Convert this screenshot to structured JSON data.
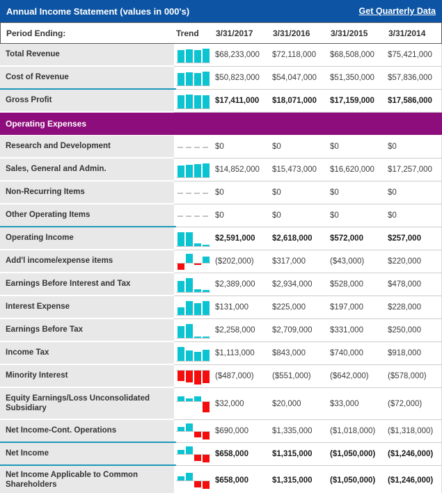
{
  "header": {
    "title": "Annual Income Statement (values in 000's)",
    "link_label": "Get Quarterly Data"
  },
  "columns": {
    "label": "Period Ending:",
    "trend_label": "Trend",
    "periods": [
      "3/31/2017",
      "3/31/2016",
      "3/31/2015",
      "3/31/2014"
    ]
  },
  "colors": {
    "header_blue": "#0d55a4",
    "section_purple": "#8c0d7b",
    "bar_teal": "#0cc3d2",
    "bar_red": "#f50c0c",
    "divider_teal": "#1b97ba",
    "label_gray_bg": "#e8e8e8",
    "row_separator": "#cccccc",
    "text_dark": "#333333"
  },
  "rows": [
    {
      "type": "data",
      "label": "Total Revenue",
      "bold": false,
      "group_top": false,
      "tall": 0,
      "values": [
        "$68,233,000",
        "$72,118,000",
        "$68,508,000",
        "$75,421,000"
      ],
      "trend": [
        68233,
        72118,
        68508,
        75421
      ]
    },
    {
      "type": "data",
      "label": "Cost of Revenue",
      "bold": false,
      "group_top": false,
      "tall": 0,
      "values": [
        "$50,823,000",
        "$54,047,000",
        "$51,350,000",
        "$57,836,000"
      ],
      "trend": [
        50823,
        54047,
        51350,
        57836
      ]
    },
    {
      "type": "data",
      "label": "Gross Profit",
      "bold": true,
      "group_top": true,
      "tall": 0,
      "values": [
        "$17,411,000",
        "$18,071,000",
        "$17,159,000",
        "$17,586,000"
      ],
      "trend": [
        17411,
        18071,
        17159,
        17586
      ]
    },
    {
      "type": "section",
      "label": "Operating Expenses"
    },
    {
      "type": "data",
      "label": "Research and Development",
      "bold": false,
      "group_top": false,
      "tall": 0,
      "values": [
        "$0",
        "$0",
        "$0",
        "$0"
      ],
      "trend": [
        0,
        0,
        0,
        0
      ]
    },
    {
      "type": "data",
      "label": "Sales, General and Admin.",
      "bold": false,
      "group_top": false,
      "tall": 0,
      "values": [
        "$14,852,000",
        "$15,473,000",
        "$16,620,000",
        "$17,257,000"
      ],
      "trend": [
        14852,
        15473,
        16620,
        17257
      ]
    },
    {
      "type": "data",
      "label": "Non-Recurring Items",
      "bold": false,
      "group_top": false,
      "tall": 0,
      "values": [
        "$0",
        "$0",
        "$0",
        "$0"
      ],
      "trend": [
        0,
        0,
        0,
        0
      ]
    },
    {
      "type": "data",
      "label": "Other Operating Items",
      "bold": false,
      "group_top": false,
      "tall": 0,
      "values": [
        "$0",
        "$0",
        "$0",
        "$0"
      ],
      "trend": [
        0,
        0,
        0,
        0
      ]
    },
    {
      "type": "data",
      "label": "Operating Income",
      "bold": true,
      "group_top": true,
      "tall": 0,
      "values": [
        "$2,591,000",
        "$2,618,000",
        "$572,000",
        "$257,000"
      ],
      "trend": [
        2591,
        2618,
        572,
        257
      ]
    },
    {
      "type": "data",
      "label": "Add'l income/expense items",
      "bold": false,
      "group_top": false,
      "tall": 0,
      "values": [
        "($202,000)",
        "$317,000",
        "($43,000)",
        "$220,000"
      ],
      "trend": [
        -202,
        317,
        -43,
        220
      ]
    },
    {
      "type": "data",
      "label": "Earnings Before Interest and Tax",
      "bold": false,
      "group_top": false,
      "tall": 0,
      "values": [
        "$2,389,000",
        "$2,934,000",
        "$528,000",
        "$478,000"
      ],
      "trend": [
        2389,
        2934,
        528,
        478
      ]
    },
    {
      "type": "data",
      "label": "Interest Expense",
      "bold": false,
      "group_top": false,
      "tall": 0,
      "values": [
        "$131,000",
        "$225,000",
        "$197,000",
        "$228,000"
      ],
      "trend": [
        131,
        225,
        197,
        228
      ]
    },
    {
      "type": "data",
      "label": "Earnings Before Tax",
      "bold": false,
      "group_top": false,
      "tall": 0,
      "values": [
        "$2,258,000",
        "$2,709,000",
        "$331,000",
        "$250,000"
      ],
      "trend": [
        2258,
        2709,
        331,
        250
      ]
    },
    {
      "type": "data",
      "label": "Income Tax",
      "bold": false,
      "group_top": false,
      "tall": 0,
      "values": [
        "$1,113,000",
        "$843,000",
        "$740,000",
        "$918,000"
      ],
      "trend": [
        1113,
        843,
        740,
        918
      ]
    },
    {
      "type": "data",
      "label": "Minority Interest",
      "bold": false,
      "group_top": false,
      "tall": 0,
      "values": [
        "($487,000)",
        "($551,000)",
        "($642,000)",
        "($578,000)"
      ],
      "trend": [
        -487,
        -551,
        -642,
        -578
      ]
    },
    {
      "type": "data",
      "label": "Equity Earnings/Loss Unconsolidated Subsidiary",
      "bold": false,
      "group_top": false,
      "tall": 1,
      "values": [
        "$32,000",
        "$20,000",
        "$33,000",
        "($72,000)"
      ],
      "trend": [
        32,
        20,
        33,
        -72
      ]
    },
    {
      "type": "data",
      "label": "Net Income-Cont. Operations",
      "bold": false,
      "group_top": false,
      "tall": 0,
      "values": [
        "$690,000",
        "$1,335,000",
        "($1,018,000)",
        "($1,318,000)"
      ],
      "trend": [
        690,
        1335,
        -1018,
        -1318
      ]
    },
    {
      "type": "data",
      "label": "Net Income",
      "bold": true,
      "group_top": true,
      "tall": 0,
      "values": [
        "$658,000",
        "$1,315,000",
        "($1,050,000)",
        "($1,246,000)"
      ],
      "trend": [
        658,
        1315,
        -1050,
        -1246
      ]
    },
    {
      "type": "data",
      "label": "Net Income Applicable to Common Shareholders",
      "bold": true,
      "group_top": true,
      "tall": 2,
      "values": [
        "$658,000",
        "$1,315,000",
        "($1,050,000)",
        "($1,246,000)"
      ],
      "trend": [
        658,
        1315,
        -1050,
        -1246
      ]
    }
  ]
}
